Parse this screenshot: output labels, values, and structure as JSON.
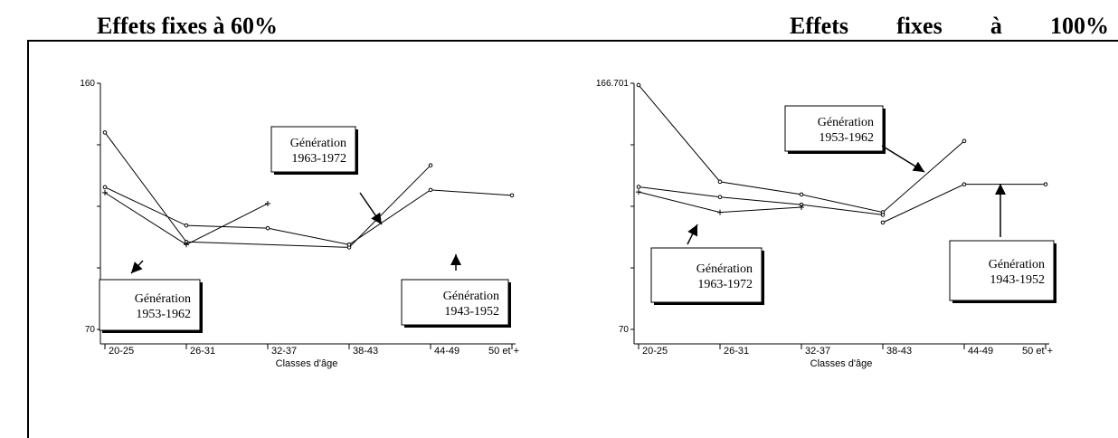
{
  "headings": {
    "left": "Effets fixes à 60%",
    "right_words": [
      "Effets",
      "fixes",
      "à",
      "100%"
    ]
  },
  "chart_data": [
    {
      "type": "line",
      "xlabel": "Classes d'âge",
      "categories": [
        "20-25",
        "26-31",
        "32-37",
        "38-43",
        "44-49",
        "50 et +"
      ],
      "ylim": [
        70,
        160
      ],
      "y_tick_labels": [
        "160",
        "70"
      ],
      "series": [
        {
          "name": "Génération 1963-1972",
          "marker": "circle",
          "values": [
            142,
            102,
            null,
            100,
            130,
            null
          ]
        },
        {
          "name": "Génération 1953-1962",
          "marker": "circle",
          "values": [
            122,
            108,
            107,
            101,
            null,
            null
          ]
        },
        {
          "name": "Génération 1953-1962 (+)",
          "marker": "plus",
          "values": [
            120,
            101,
            116,
            null,
            null,
            null
          ]
        },
        {
          "name": "Génération 1943-1952",
          "marker": "circle",
          "values": [
            null,
            null,
            null,
            101,
            121,
            119
          ]
        }
      ],
      "callouts": [
        {
          "line1": "Génération",
          "line2": "1963-1972"
        },
        {
          "line1": "Génération",
          "line2": "1953-1962"
        },
        {
          "line1": "Génération",
          "line2": "1943-1952"
        }
      ]
    },
    {
      "type": "line",
      "xlabel": "Classes d'âge",
      "categories": [
        "20-25",
        "26-31",
        "32-37",
        "38-43",
        "44-49",
        "50 et +"
      ],
      "ylim": [
        70,
        166.701
      ],
      "y_tick_labels": [
        "166.701",
        "70"
      ],
      "series": [
        {
          "name": "Génération 1953-1962",
          "marker": "circle",
          "values": [
            166,
            128,
            123,
            116,
            144,
            null
          ]
        },
        {
          "name": "Génération 1963-1972",
          "marker": "circle",
          "values": [
            126,
            122,
            119,
            115,
            null,
            null
          ]
        },
        {
          "name": "Génération 1963-1972 (+)",
          "marker": "plus",
          "values": [
            124,
            116,
            118,
            null,
            null,
            null
          ]
        },
        {
          "name": "Génération 1943-1952",
          "marker": "circle",
          "values": [
            null,
            null,
            null,
            112,
            127,
            127
          ]
        }
      ],
      "callouts": [
        {
          "line1": "Génération",
          "line2": "1953-1962"
        },
        {
          "line1": "Génération",
          "line2": "1963-1972"
        },
        {
          "line1": "Génération",
          "line2": "1943-1952"
        }
      ]
    }
  ]
}
